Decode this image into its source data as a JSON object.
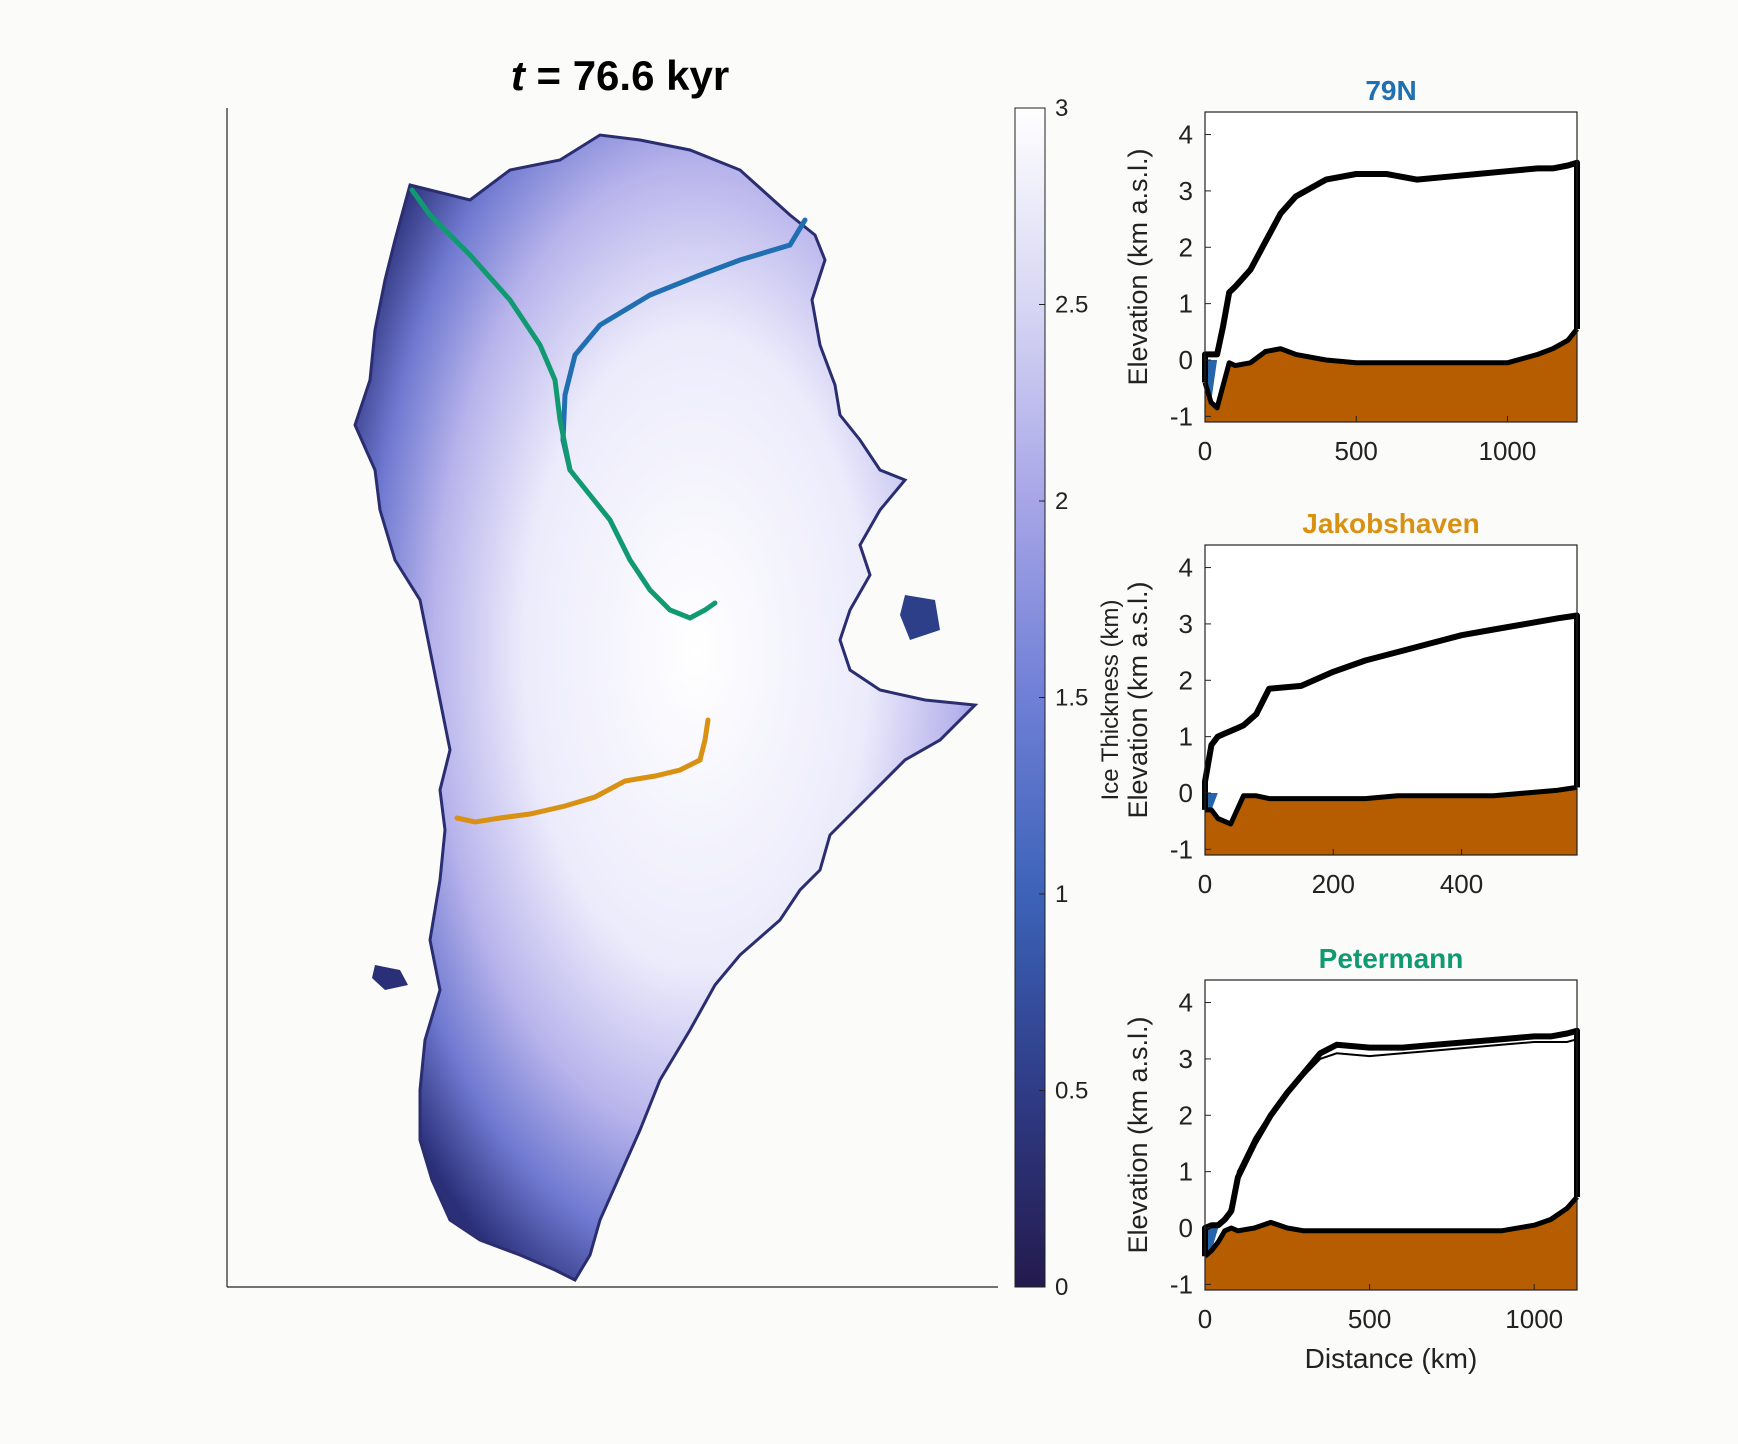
{
  "figure": {
    "title_var": "t",
    "title_rest": " = 76.6 kyr"
  },
  "colorbar": {
    "label": "Ice Thickness (km)",
    "range": [
      0,
      3
    ],
    "ticks": [
      "0",
      "0.5",
      "1",
      "1.5",
      "2",
      "2.5",
      "3"
    ],
    "colors": [
      "#241a4e",
      "#2f3c86",
      "#3c63b8",
      "#6f7fd6",
      "#a7a5e7",
      "#d7d6f4",
      "#ffffff"
    ]
  },
  "map": {
    "transects": [
      {
        "name": "79N",
        "color": "#1f6fb1"
      },
      {
        "name": "Jakobshaven",
        "color": "#d89113"
      },
      {
        "name": "Petermann",
        "color": "#119a72"
      }
    ]
  },
  "chart_data": [
    {
      "type": "area",
      "title": "79N",
      "title_color": "#1f6fb1",
      "xlabel": "",
      "ylabel": "Elevation (km a.s.l.)",
      "xlim": [
        0,
        1230
      ],
      "ylim": [
        -1.1,
        4.4
      ],
      "xticks": [
        "0",
        "500",
        "1000"
      ],
      "yticks": [
        "4",
        "3",
        "2",
        "1",
        "0",
        "-1"
      ],
      "bed_color": "#b55d00",
      "water_color": "#2664ab",
      "x": [
        0,
        20,
        40,
        60,
        80,
        100,
        150,
        200,
        250,
        300,
        400,
        500,
        600,
        700,
        800,
        900,
        1000,
        1100,
        1150,
        1200,
        1230
      ],
      "bed": [
        -0.4,
        -0.75,
        -0.85,
        -0.45,
        -0.05,
        -0.1,
        -0.05,
        0.15,
        0.2,
        0.1,
        0.0,
        -0.05,
        -0.05,
        -0.05,
        -0.05,
        -0.05,
        -0.05,
        0.1,
        0.2,
        0.35,
        0.55
      ],
      "surface": [
        0.1,
        0.1,
        0.1,
        0.6,
        1.2,
        1.3,
        1.6,
        2.1,
        2.6,
        2.9,
        3.2,
        3.3,
        3.3,
        3.2,
        3.25,
        3.3,
        3.35,
        3.4,
        3.4,
        3.45,
        3.5
      ]
    },
    {
      "type": "area",
      "title": "Jakobshaven",
      "title_color": "#d89113",
      "xlabel": "",
      "ylabel": "Elevation (km a.s.l.)",
      "xlim": [
        0,
        580
      ],
      "ylim": [
        -1.1,
        4.4
      ],
      "xticks": [
        "0",
        "200",
        "400"
      ],
      "yticks": [
        "4",
        "3",
        "2",
        "1",
        "0",
        "-1"
      ],
      "bed_color": "#b55d00",
      "water_color": "#2664ab",
      "x": [
        0,
        10,
        20,
        30,
        40,
        50,
        60,
        80,
        100,
        150,
        200,
        250,
        300,
        350,
        400,
        450,
        500,
        550,
        580
      ],
      "bed": [
        -0.3,
        -0.3,
        -0.45,
        -0.5,
        -0.55,
        -0.3,
        -0.05,
        -0.05,
        -0.1,
        -0.1,
        -0.1,
        -0.1,
        -0.05,
        -0.05,
        -0.05,
        -0.05,
        0.0,
        0.05,
        0.1
      ],
      "surface": [
        0.2,
        0.85,
        1.0,
        1.05,
        1.1,
        1.15,
        1.2,
        1.4,
        1.85,
        1.9,
        2.15,
        2.35,
        2.5,
        2.65,
        2.8,
        2.9,
        3.0,
        3.1,
        3.15
      ]
    },
    {
      "type": "area",
      "title": "Petermann",
      "title_color": "#119a72",
      "xlabel": "Distance (km)",
      "ylabel": "Elevation (km a.s.l.)",
      "xlim": [
        0,
        1130
      ],
      "ylim": [
        -1.1,
        4.4
      ],
      "xticks": [
        "0",
        "500",
        "1000"
      ],
      "yticks": [
        "4",
        "3",
        "2",
        "1",
        "0",
        "-1"
      ],
      "bed_color": "#b55d00",
      "water_color": "#2664ab",
      "x": [
        0,
        20,
        40,
        60,
        80,
        100,
        150,
        200,
        250,
        300,
        350,
        400,
        500,
        600,
        700,
        800,
        900,
        1000,
        1050,
        1100,
        1130
      ],
      "bed": [
        -0.5,
        -0.4,
        -0.25,
        -0.05,
        0.0,
        -0.05,
        0.0,
        0.1,
        0.0,
        -0.05,
        -0.05,
        -0.05,
        -0.05,
        -0.05,
        -0.05,
        -0.05,
        -0.05,
        0.05,
        0.15,
        0.35,
        0.55
      ],
      "surface": [
        0.0,
        0.05,
        0.05,
        0.15,
        0.3,
        0.9,
        1.5,
        2.0,
        2.4,
        2.75,
        3.1,
        3.25,
        3.2,
        3.2,
        3.25,
        3.3,
        3.35,
        3.4,
        3.4,
        3.45,
        3.5
      ],
      "surface_ref": [
        0.0,
        0.05,
        0.05,
        0.15,
        0.4,
        1.0,
        1.6,
        2.05,
        2.4,
        2.7,
        3.0,
        3.1,
        3.05,
        3.1,
        3.15,
        3.2,
        3.25,
        3.3,
        3.3,
        3.3,
        3.35
      ]
    }
  ]
}
